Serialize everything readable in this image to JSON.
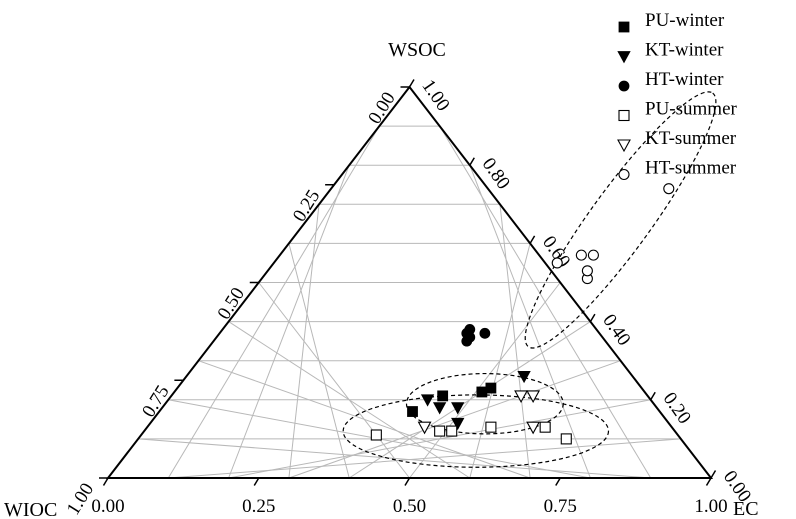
{
  "chart_data": {
    "type": "scatter",
    "subtype": "ternary",
    "corner_labels": {
      "top": "WSOC",
      "left": "WIOC",
      "right": "EC"
    },
    "axis_ticks": {
      "bottom": [
        "0.00",
        "0.25",
        "0.50",
        "0.75",
        "1.00"
      ],
      "left": [
        "0.00",
        "0.25",
        "0.50",
        "0.75",
        "1.00"
      ],
      "right": [
        "0.00",
        "0.20",
        "0.40",
        "0.60",
        "0.80",
        "1.00"
      ]
    },
    "grid": true,
    "legend_position": "top-right",
    "series": [
      {
        "name": "PU-winter",
        "marker": "filled-square",
        "points": [
          [
            0.17,
            0.42
          ],
          [
            0.21,
            0.45
          ],
          [
            0.23,
            0.52
          ],
          [
            0.22,
            0.51
          ]
        ]
      },
      {
        "name": "KT-winter",
        "marker": "filled-triangle-down",
        "points": [
          [
            0.2,
            0.43
          ],
          [
            0.18,
            0.49
          ],
          [
            0.26,
            0.56
          ],
          [
            0.14,
            0.51
          ],
          [
            0.18,
            0.46
          ]
        ]
      },
      {
        "name": "HT-winter",
        "marker": "filled-circle",
        "points": [
          [
            0.37,
            0.41
          ],
          [
            0.38,
            0.41
          ],
          [
            0.36,
            0.42
          ],
          [
            0.35,
            0.42
          ],
          [
            0.37,
            0.44
          ]
        ]
      },
      {
        "name": "PU-summer",
        "marker": "open-square",
        "points": [
          [
            0.11,
            0.39
          ],
          [
            0.12,
            0.49
          ],
          [
            0.12,
            0.51
          ],
          [
            0.13,
            0.57
          ],
          [
            0.13,
            0.66
          ],
          [
            0.1,
            0.71
          ]
        ]
      },
      {
        "name": "KT-summer",
        "marker": "open-triangle-down",
        "points": [
          [
            0.13,
            0.46
          ],
          [
            0.21,
            0.58
          ],
          [
            0.13,
            0.64
          ],
          [
            0.21,
            0.6
          ]
        ]
      },
      {
        "name": "HT-summer",
        "marker": "open-circle",
        "points": [
          [
            0.55,
            0.47
          ],
          [
            0.57,
            0.5
          ],
          [
            0.51,
            0.54
          ],
          [
            0.57,
            0.52
          ],
          [
            0.53,
            0.53
          ],
          [
            0.74,
            0.56
          ]
        ]
      }
    ],
    "ellipses": [
      {
        "center": [
          0.66,
          0.52
        ],
        "semi_major": 0.26,
        "semi_minor": 0.05,
        "angle_deg": -54
      },
      {
        "center": [
          0.19,
          0.53
        ],
        "semi_major": 0.13,
        "semi_minor": 0.05,
        "angle_deg": 0
      },
      {
        "center": [
          0.12,
          0.55
        ],
        "semi_major": 0.22,
        "semi_minor": 0.06,
        "angle_deg": 0
      }
    ]
  }
}
